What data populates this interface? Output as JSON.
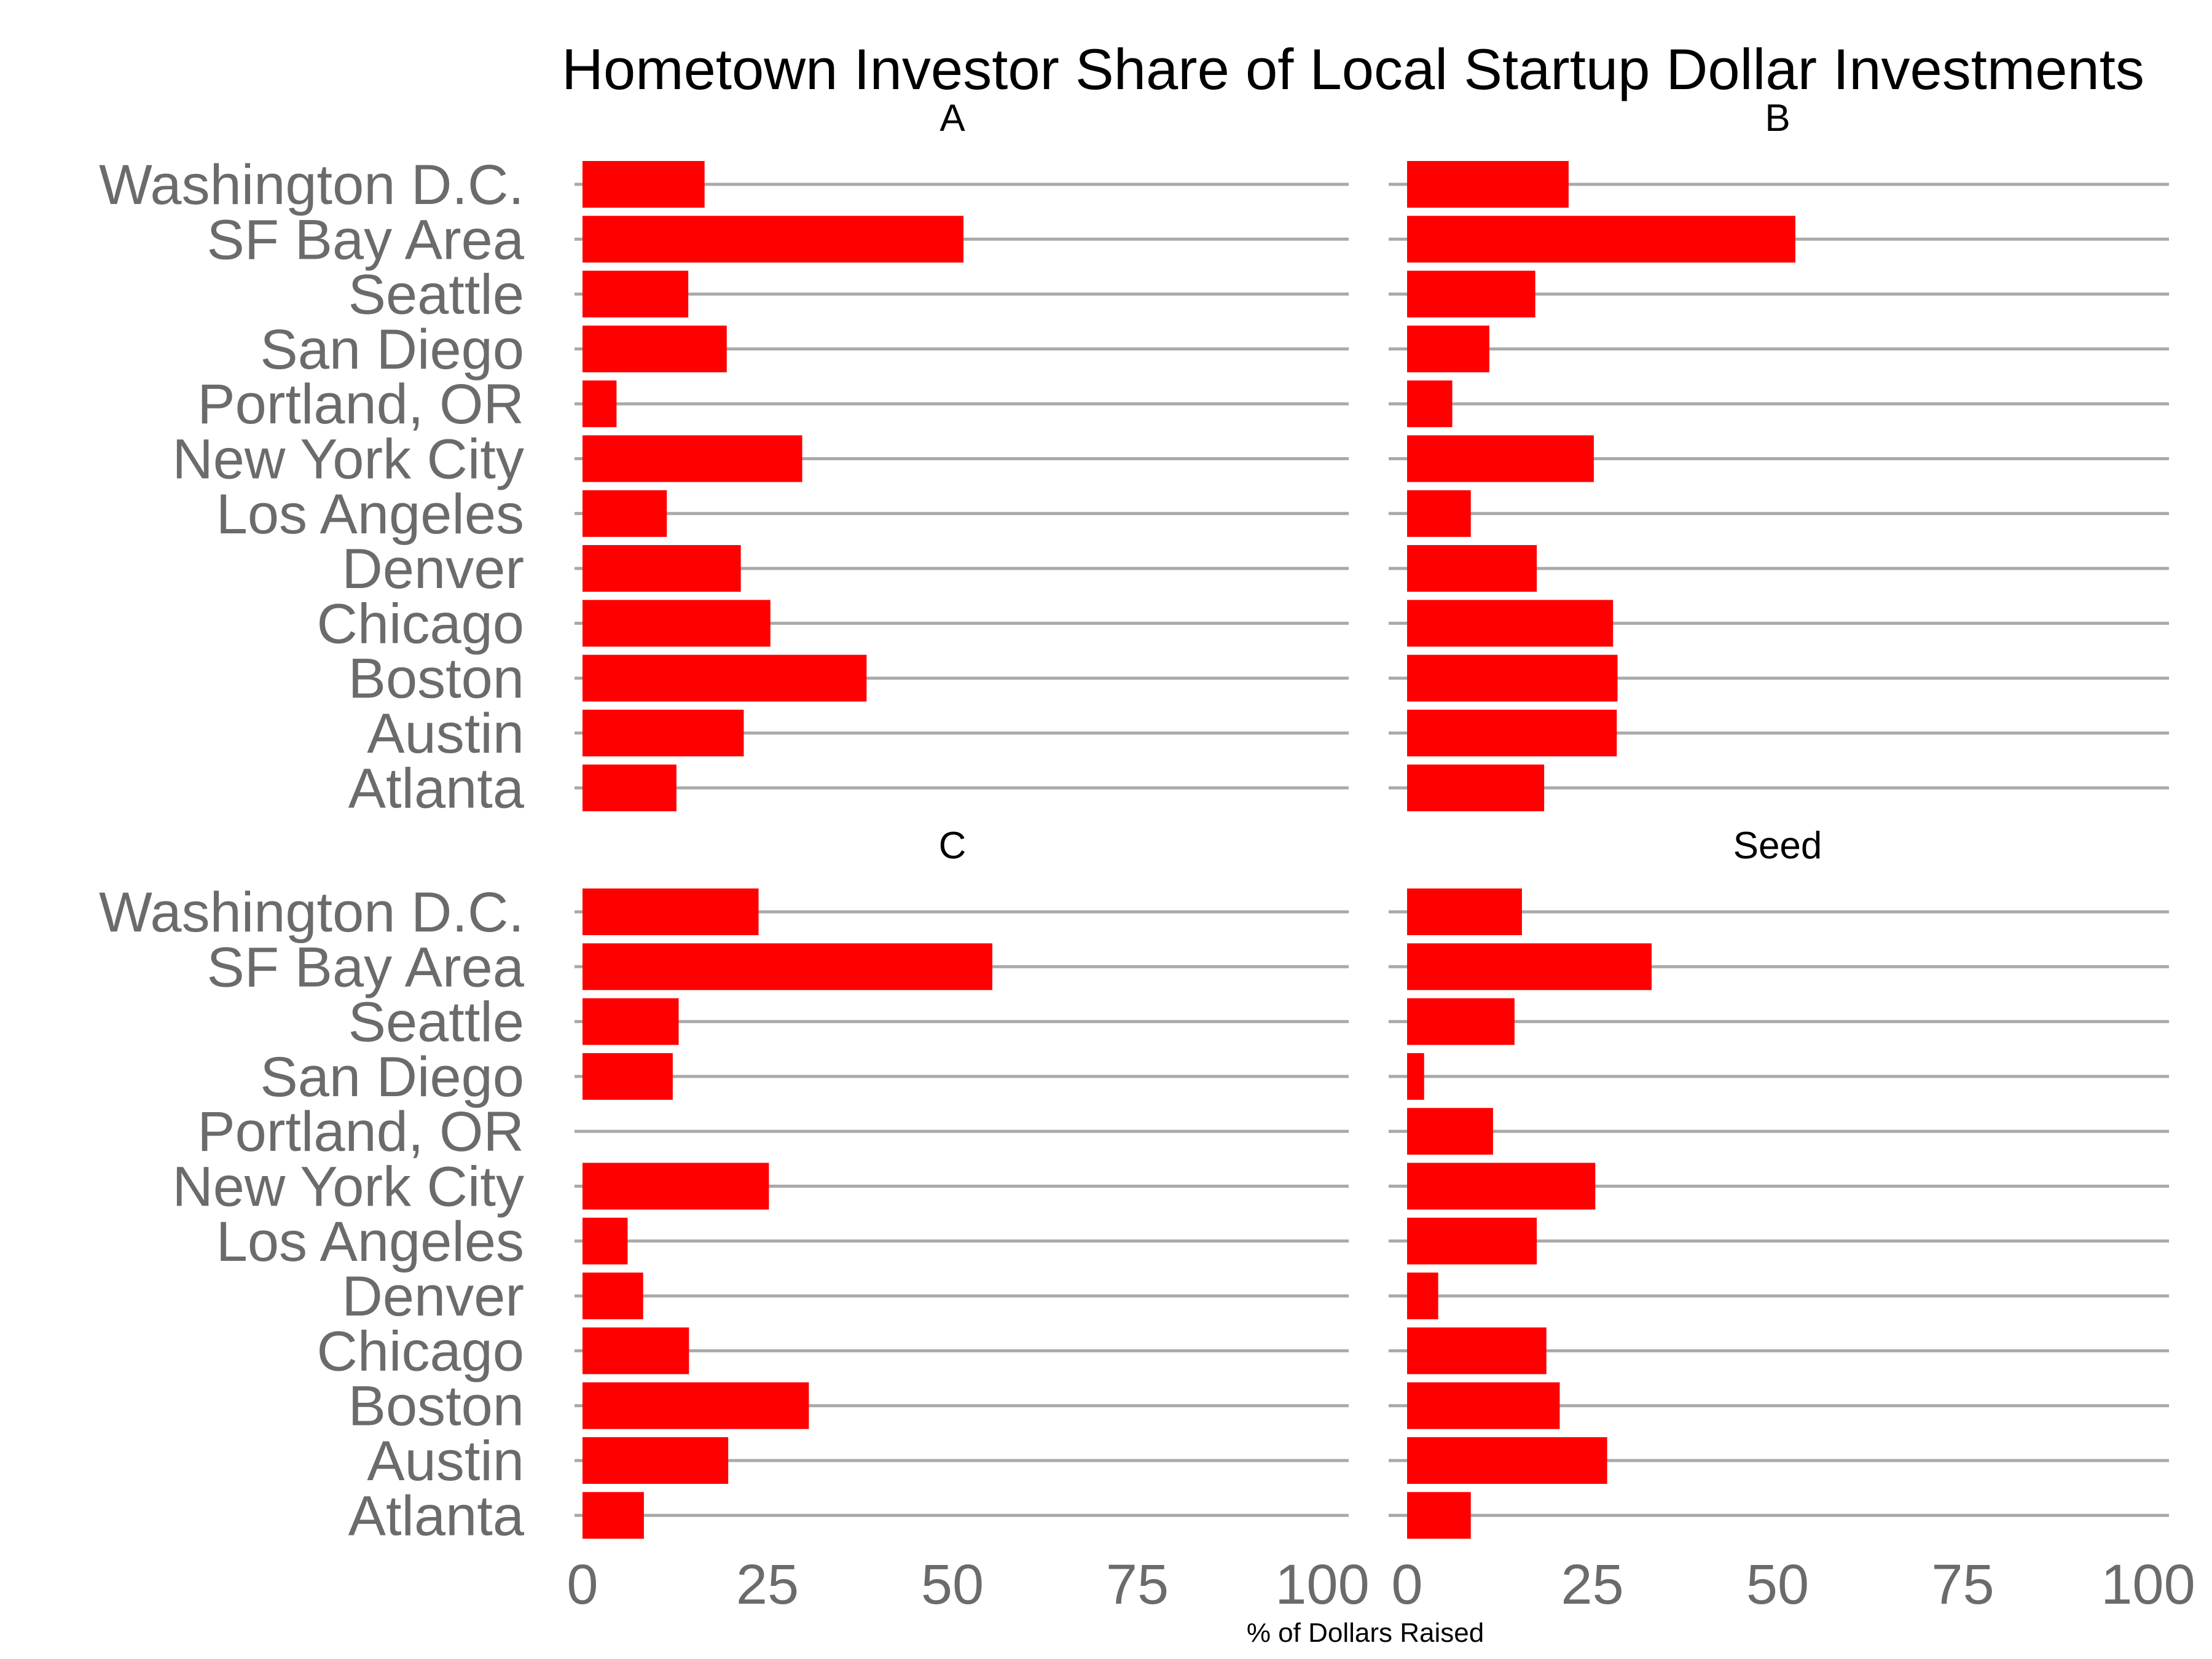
{
  "chart_data": {
    "type": "bar",
    "orientation": "horizontal",
    "title": "Hometown Investor Share of Local Startup Dollar Investments",
    "xlabel": "% of Dollars Raised",
    "ylabel": "",
    "xlim": [
      0,
      100
    ],
    "x_ticks": [
      "0",
      "25",
      "50",
      "75",
      "100"
    ],
    "grid": true,
    "bar_color": "#ff0000",
    "categories": [
      "Washington D.C.",
      "SF Bay Area",
      "Seattle",
      "San Diego",
      "Portland, OR",
      "New York City",
      "Los Angeles",
      "Denver",
      "Chicago",
      "Boston",
      "Austin",
      "Atlanta"
    ],
    "panels": [
      {
        "name": "A",
        "values": [
          16.5,
          51.5,
          14.3,
          19.5,
          4.6,
          29.7,
          11.4,
          21.4,
          25.4,
          38.4,
          21.8,
          12.7
        ]
      },
      {
        "name": "B",
        "values": [
          21.8,
          52.4,
          17.3,
          11.1,
          6.1,
          25.2,
          8.6,
          17.5,
          27.8,
          28.4,
          28.3,
          18.5
        ]
      },
      {
        "name": "C",
        "values": [
          23.8,
          55.4,
          13.0,
          12.2,
          0,
          25.2,
          6.1,
          8.2,
          14.4,
          30.6,
          19.7,
          8.3
        ]
      },
      {
        "name": "Seed",
        "values": [
          15.5,
          33.0,
          14.5,
          2.3,
          11.6,
          25.4,
          17.5,
          4.2,
          18.8,
          20.6,
          27.0,
          8.6
        ]
      }
    ]
  }
}
